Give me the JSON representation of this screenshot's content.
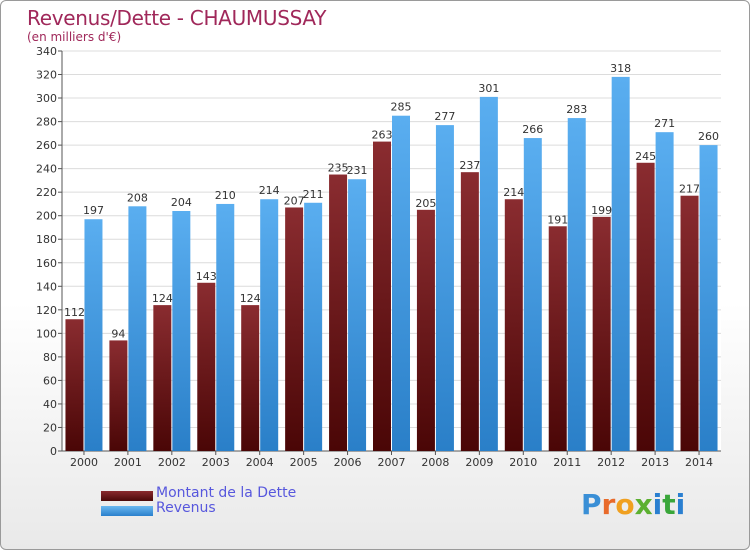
{
  "chart_data": {
    "type": "bar",
    "title": "Revenus/Dette - CHAUMUSSAY",
    "subtitle": "(en milliers d'€)",
    "categories": [
      "2000",
      "2001",
      "2002",
      "2003",
      "2004",
      "2005",
      "2006",
      "2007",
      "2008",
      "2009",
      "2010",
      "2011",
      "2012",
      "2013",
      "2014"
    ],
    "series": [
      {
        "name": "Montant de la Dette",
        "color": "#7a1e22",
        "values": [
          112,
          94,
          124,
          143,
          124,
          207,
          235,
          263,
          205,
          237,
          214,
          191,
          199,
          245,
          217
        ]
      },
      {
        "name": "Revenus",
        "color": "#3a9be6",
        "values": [
          197,
          208,
          204,
          210,
          214,
          211,
          231,
          285,
          277,
          301,
          266,
          283,
          318,
          271,
          260
        ]
      }
    ],
    "ylim": [
      0,
      340
    ],
    "yticks": [
      0,
      20,
      40,
      60,
      80,
      100,
      120,
      140,
      160,
      180,
      200,
      220,
      240,
      260,
      280,
      300,
      320,
      340
    ],
    "grid": true,
    "legend_position": "bottom-left"
  },
  "legend": {
    "debt_label": "Montant de la Dette",
    "revenue_label": "Revenus"
  },
  "logo": {
    "text": "Proxiti"
  }
}
